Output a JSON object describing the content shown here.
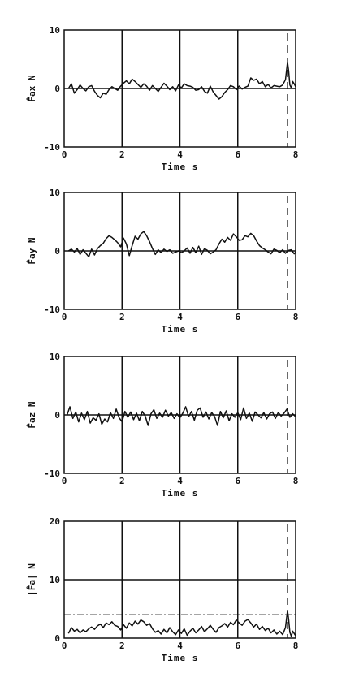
{
  "chart_data": [
    {
      "type": "line",
      "ylabel": "F̂ax N",
      "xlabel": "Time s",
      "xlim": [
        0,
        8
      ],
      "ylim": [
        -10,
        10
      ],
      "xticks": [
        "0",
        "2",
        "4",
        "6",
        "8"
      ],
      "yticks": [
        "-10",
        "0",
        "10"
      ],
      "grid_x": [
        2,
        4,
        6
      ],
      "grid_y": [
        0
      ],
      "vline_dashed": 7.72,
      "series": [
        {
          "x": [
            0.15,
            0.25,
            0.35,
            0.45,
            0.55,
            0.65,
            0.75,
            0.85,
            0.95,
            1.05,
            1.15,
            1.25,
            1.35,
            1.45,
            1.55,
            1.65,
            1.75,
            1.85,
            1.95,
            2.05,
            2.15,
            2.25,
            2.35,
            2.45,
            2.55,
            2.65,
            2.75,
            2.85,
            2.95,
            3.05,
            3.15,
            3.25,
            3.35,
            3.45,
            3.55,
            3.65,
            3.75,
            3.85,
            3.95,
            4.05,
            4.15,
            4.25,
            4.35,
            4.45,
            4.55,
            4.65,
            4.75,
            4.85,
            4.95,
            5.05,
            5.15,
            5.25,
            5.35,
            5.45,
            5.55,
            5.65,
            5.75,
            5.85,
            5.95,
            6.05,
            6.15,
            6.25,
            6.35,
            6.45,
            6.55,
            6.65,
            6.75,
            6.85,
            6.95,
            7.05,
            7.15,
            7.25,
            7.35,
            7.45,
            7.55,
            7.65,
            7.72,
            7.76,
            7.8,
            7.85,
            7.9,
            7.95,
            8.0
          ],
          "y": [
            0,
            0.8,
            -0.8,
            -0.2,
            0.6,
            0,
            -0.4,
            0.3,
            0.5,
            -0.5,
            -1.2,
            -1.6,
            -0.8,
            -1.0,
            -0.2,
            0.3,
            0,
            -0.3,
            0.4,
            0.9,
            1.3,
            0.8,
            1.6,
            1.2,
            0.7,
            0.2,
            0.8,
            0.4,
            -0.3,
            0.5,
            0,
            -0.5,
            0.2,
            0.9,
            0.4,
            -0.2,
            0.3,
            -0.4,
            0.6,
            0.1,
            0.8,
            0.5,
            0.4,
            0.2,
            -0.3,
            -0.2,
            0.3,
            -0.5,
            -0.8,
            0.4,
            -0.6,
            -1.2,
            -1.8,
            -1.4,
            -0.7,
            -0.2,
            0.5,
            0.3,
            -0.2,
            0.4,
            -0.1,
            0.2,
            0.4,
            1.8,
            1.4,
            1.6,
            0.8,
            1.2,
            0.3,
            0.7,
            0.1,
            0.5,
            0.4,
            0.3,
            0.6,
            1.5,
            4.5,
            3.0,
            0.6,
            0.1,
            1.2,
            0.8,
            0.3
          ]
        }
      ]
    },
    {
      "type": "line",
      "ylabel": "F̂ay N",
      "xlabel": "Time s",
      "xlim": [
        0,
        8
      ],
      "ylim": [
        -10,
        10
      ],
      "xticks": [
        "0",
        "2",
        "4",
        "6",
        "8"
      ],
      "yticks": [
        "-10",
        "0",
        "10"
      ],
      "grid_x": [
        2,
        4,
        6
      ],
      "grid_y": [
        0
      ],
      "vline_dashed": 7.72,
      "series": [
        {
          "x": [
            0.15,
            0.25,
            0.35,
            0.45,
            0.55,
            0.65,
            0.75,
            0.85,
            0.95,
            1.05,
            1.15,
            1.25,
            1.35,
            1.45,
            1.55,
            1.65,
            1.75,
            1.85,
            1.95,
            2.05,
            2.15,
            2.25,
            2.35,
            2.45,
            2.55,
            2.65,
            2.75,
            2.85,
            2.95,
            3.05,
            3.15,
            3.25,
            3.35,
            3.45,
            3.55,
            3.65,
            3.75,
            3.85,
            3.95,
            4.05,
            4.15,
            4.25,
            4.35,
            4.45,
            4.55,
            4.65,
            4.75,
            4.85,
            4.95,
            5.05,
            5.15,
            5.25,
            5.35,
            5.45,
            5.55,
            5.65,
            5.75,
            5.85,
            5.95,
            6.05,
            6.15,
            6.25,
            6.35,
            6.45,
            6.55,
            6.65,
            6.75,
            6.85,
            6.95,
            7.05,
            7.15,
            7.25,
            7.35,
            7.45,
            7.55,
            7.65,
            7.75,
            7.85,
            7.95,
            8.0
          ],
          "y": [
            0,
            0.3,
            -0.2,
            0.4,
            -0.6,
            0.2,
            -0.4,
            -1.0,
            0.3,
            -0.7,
            0.4,
            0.9,
            1.3,
            2.1,
            2.6,
            2.3,
            1.9,
            1.4,
            0.7,
            2.2,
            1.2,
            -0.8,
            0.9,
            2.5,
            2.0,
            2.9,
            3.3,
            2.6,
            1.6,
            0.4,
            -0.6,
            0.2,
            -0.3,
            0.3,
            -0.1,
            0.2,
            -0.4,
            -0.2,
            0,
            -0.3,
            0,
            0.5,
            -0.4,
            0.6,
            -0.3,
            0.8,
            -0.6,
            0.4,
            0.1,
            -0.5,
            -0.2,
            0.2,
            1.2,
            2.0,
            1.5,
            2.3,
            1.8,
            2.9,
            2.4,
            1.8,
            1.9,
            2.6,
            2.4,
            3.0,
            2.6,
            1.7,
            0.9,
            0.5,
            0.2,
            -0.2,
            -0.5,
            0.3,
            0.1,
            -0.3,
            0.2,
            -0.4,
            0.1,
            0.2,
            -0.5,
            -0.2
          ]
        }
      ]
    },
    {
      "type": "line",
      "ylabel": "F̂az N",
      "xlabel": "Time s",
      "xlim": [
        0,
        8
      ],
      "ylim": [
        -10,
        10
      ],
      "xticks": [
        "0",
        "2",
        "4",
        "6",
        "8"
      ],
      "yticks": [
        "-10",
        "0",
        "10"
      ],
      "grid_x": [
        2,
        4,
        6
      ],
      "grid_y": [
        0
      ],
      "vline_dashed": 7.72,
      "series": [
        {
          "x": [
            0.1,
            0.2,
            0.3,
            0.4,
            0.5,
            0.6,
            0.7,
            0.8,
            0.9,
            1.0,
            1.1,
            1.2,
            1.3,
            1.4,
            1.5,
            1.6,
            1.7,
            1.8,
            1.9,
            2.0,
            2.1,
            2.2,
            2.3,
            2.4,
            2.5,
            2.6,
            2.7,
            2.8,
            2.9,
            3.0,
            3.1,
            3.2,
            3.3,
            3.4,
            3.5,
            3.6,
            3.7,
            3.8,
            3.9,
            4.0,
            4.1,
            4.2,
            4.3,
            4.4,
            4.5,
            4.6,
            4.7,
            4.8,
            4.9,
            5.0,
            5.1,
            5.2,
            5.3,
            5.4,
            5.5,
            5.6,
            5.7,
            5.8,
            5.9,
            6.0,
            6.1,
            6.2,
            6.3,
            6.4,
            6.5,
            6.6,
            6.7,
            6.8,
            6.9,
            7.0,
            7.1,
            7.2,
            7.3,
            7.4,
            7.5,
            7.6,
            7.7,
            7.8,
            7.9,
            8.0
          ],
          "y": [
            0,
            1.4,
            -0.6,
            0.5,
            -1.2,
            0.3,
            -0.8,
            0.6,
            -1.4,
            -0.5,
            -0.9,
            0.2,
            -1.6,
            -0.7,
            -1.2,
            0.4,
            -0.6,
            1.0,
            -0.5,
            -1.2,
            0.6,
            -0.4,
            0.5,
            -0.8,
            0.3,
            -1.0,
            0.6,
            -0.2,
            -1.8,
            0.2,
            0.9,
            -0.6,
            0.3,
            -0.4,
            0.8,
            -0.2,
            0.4,
            -0.6,
            0.2,
            -0.5,
            0.3,
            1.4,
            -0.3,
            0.6,
            -0.9,
            0.8,
            1.2,
            -0.4,
            0.5,
            -0.7,
            0.4,
            -0.3,
            -1.8,
            0.6,
            -0.5,
            0.7,
            -1.0,
            0.2,
            -0.4,
            0.4,
            -0.8,
            1.2,
            -0.6,
            0.3,
            -1.1,
            0.5,
            0,
            -0.5,
            0.4,
            -0.7,
            0.2,
            0.5,
            -0.6,
            0.4,
            -0.2,
            0.3,
            1.0,
            -0.4,
            0.2,
            -0.3
          ]
        }
      ]
    },
    {
      "type": "line",
      "ylabel": "|F̂a| N",
      "xlabel": "Time s",
      "xlim": [
        0,
        8
      ],
      "ylim": [
        0,
        20
      ],
      "xticks": [
        "0",
        "2",
        "4",
        "6",
        "8"
      ],
      "yticks": [
        "0",
        "10",
        "20"
      ],
      "grid_x": [
        2,
        4,
        6
      ],
      "grid_y": [
        10
      ],
      "hline_dashdot": 4,
      "vline_dashed": 7.72,
      "series": [
        {
          "x": [
            0.15,
            0.25,
            0.35,
            0.45,
            0.55,
            0.65,
            0.75,
            0.85,
            0.95,
            1.05,
            1.15,
            1.25,
            1.35,
            1.45,
            1.55,
            1.65,
            1.75,
            1.85,
            1.95,
            2.05,
            2.15,
            2.25,
            2.35,
            2.45,
            2.55,
            2.65,
            2.75,
            2.85,
            2.95,
            3.05,
            3.15,
            3.25,
            3.35,
            3.45,
            3.55,
            3.65,
            3.75,
            3.85,
            3.95,
            4.05,
            4.15,
            4.25,
            4.35,
            4.45,
            4.55,
            4.65,
            4.75,
            4.85,
            4.95,
            5.05,
            5.15,
            5.25,
            5.35,
            5.45,
            5.55,
            5.65,
            5.75,
            5.85,
            5.95,
            6.05,
            6.15,
            6.25,
            6.35,
            6.45,
            6.55,
            6.65,
            6.75,
            6.85,
            6.95,
            7.05,
            7.15,
            7.25,
            7.35,
            7.45,
            7.55,
            7.65,
            7.72,
            7.76,
            7.8,
            7.85,
            7.9,
            7.95,
            8.0
          ],
          "y": [
            0.8,
            1.8,
            1.2,
            1.5,
            0.9,
            1.4,
            1.1,
            1.6,
            1.9,
            1.5,
            2.1,
            2.4,
            1.8,
            2.6,
            2.3,
            2.8,
            2.2,
            2.0,
            1.4,
            2.3,
            1.7,
            2.6,
            2.1,
            2.9,
            2.4,
            3.1,
            2.8,
            2.2,
            2.5,
            1.6,
            1.0,
            1.3,
            0.7,
            1.5,
            0.9,
            1.8,
            1.1,
            0.6,
            1.4,
            0.8,
            1.6,
            0.5,
            1.2,
            1.7,
            0.9,
            1.4,
            2.0,
            1.1,
            1.6,
            2.2,
            1.5,
            1.0,
            1.8,
            2.1,
            2.5,
            1.9,
            2.7,
            2.3,
            3.1,
            2.6,
            2.2,
            2.9,
            3.2,
            2.6,
            1.9,
            2.4,
            1.5,
            2.0,
            1.3,
            1.7,
            0.9,
            1.4,
            0.7,
            1.2,
            0.6,
            1.8,
            4.7,
            3.2,
            1.0,
            0.3,
            1.2,
            0.8,
            0.4
          ]
        }
      ]
    }
  ]
}
